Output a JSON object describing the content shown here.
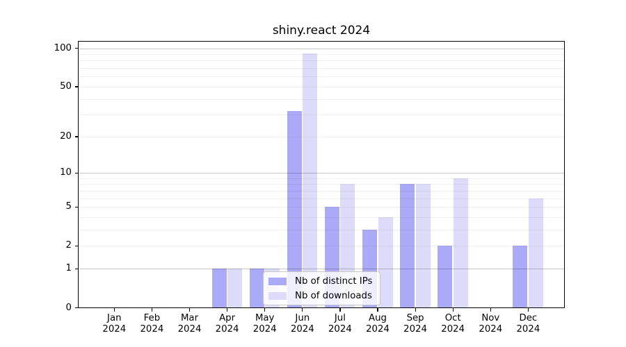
{
  "chart_data": {
    "type": "bar",
    "title": "shiny.react 2024",
    "x_year": "2024",
    "months": [
      "Jan",
      "Feb",
      "Mar",
      "Apr",
      "May",
      "Jun",
      "Jul",
      "Aug",
      "Sep",
      "Oct",
      "Nov",
      "Dec"
    ],
    "series": [
      {
        "name": "Nb of distinct IPs",
        "color": "#abaaf8",
        "values": [
          0,
          0,
          0,
          1,
          1,
          32,
          5,
          3,
          8,
          2,
          0,
          2
        ]
      },
      {
        "name": "Nb of downloads",
        "color": "#dcdcfa",
        "values": [
          0,
          0,
          0,
          1,
          1,
          91,
          8,
          4,
          8,
          9,
          0,
          6
        ]
      }
    ],
    "yscale": "log1p",
    "ylim": [
      0,
      112
    ],
    "y_tick_labels": [
      0,
      1,
      2,
      5,
      10,
      20,
      50,
      100
    ],
    "y_major_gridlines": [
      1,
      10,
      100
    ],
    "y_minor_gridlines": [
      2,
      3,
      4,
      5,
      6,
      7,
      8,
      9,
      20,
      30,
      40,
      50,
      60,
      70,
      80,
      90
    ],
    "legend": {
      "position": "lower center"
    },
    "grid": true
  },
  "colors": {
    "grid_major": "rgba(0,0,0,0.22)",
    "grid_minor": "rgba(0,0,0,0.06)",
    "spine": "#000000"
  }
}
